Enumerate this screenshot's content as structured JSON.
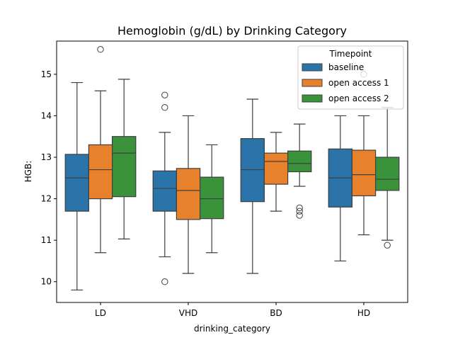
{
  "chart_data": {
    "type": "box",
    "title": "Hemoglobin (g/dL) by Drinking Category",
    "xlabel": "drinking_category",
    "ylabel": "HGB:",
    "ylim": [
      9.5,
      15.8
    ],
    "yticks": [
      10,
      11,
      12,
      13,
      14,
      15
    ],
    "categories": [
      "LD",
      "VHD",
      "BD",
      "HD"
    ],
    "legend": {
      "title": "Timepoint",
      "placement": "top-right"
    },
    "grid": false,
    "series": [
      {
        "name": "baseline",
        "color": "#2a74aa",
        "boxes": [
          {
            "whisker_low": 9.8,
            "q1": 11.7,
            "median": 12.5,
            "q3": 13.07,
            "whisker_high": 14.8,
            "outliers": []
          },
          {
            "whisker_low": 10.6,
            "q1": 11.7,
            "median": 12.25,
            "q3": 12.67,
            "whisker_high": 13.6,
            "outliers": [
              14.5,
              14.2,
              10.0
            ]
          },
          {
            "whisker_low": 10.2,
            "q1": 11.93,
            "median": 12.7,
            "q3": 13.45,
            "whisker_high": 14.4,
            "outliers": []
          },
          {
            "whisker_low": 10.5,
            "q1": 11.8,
            "median": 12.5,
            "q3": 13.2,
            "whisker_high": 14.0,
            "outliers": []
          }
        ]
      },
      {
        "name": "open access 1",
        "color": "#e8812c",
        "boxes": [
          {
            "whisker_low": 10.7,
            "q1": 12.0,
            "median": 12.7,
            "q3": 13.3,
            "whisker_high": 14.6,
            "outliers": [
              15.6
            ]
          },
          {
            "whisker_low": 10.2,
            "q1": 11.5,
            "median": 12.2,
            "q3": 12.73,
            "whisker_high": 14.0,
            "outliers": []
          },
          {
            "whisker_low": 11.7,
            "q1": 12.35,
            "median": 12.9,
            "q3": 13.1,
            "whisker_high": 13.6,
            "outliers": []
          },
          {
            "whisker_low": 11.13,
            "q1": 12.07,
            "median": 12.58,
            "q3": 13.17,
            "whisker_high": 14.0,
            "outliers": [
              15.0
            ]
          }
        ]
      },
      {
        "name": "open access 2",
        "color": "#3a923a",
        "boxes": [
          {
            "whisker_low": 11.03,
            "q1": 12.05,
            "median": 13.1,
            "q3": 13.5,
            "whisker_high": 14.88,
            "outliers": []
          },
          {
            "whisker_low": 10.7,
            "q1": 11.52,
            "median": 12.0,
            "q3": 12.52,
            "whisker_high": 13.3,
            "outliers": []
          },
          {
            "whisker_low": 12.3,
            "q1": 12.65,
            "median": 12.85,
            "q3": 13.15,
            "whisker_high": 13.8,
            "outliers": [
              11.78,
              11.7,
              11.6
            ]
          },
          {
            "whisker_low": 11.0,
            "q1": 12.2,
            "median": 12.47,
            "q3": 13.0,
            "whisker_high": 14.2,
            "outliers": [
              10.88
            ]
          }
        ]
      }
    ]
  }
}
